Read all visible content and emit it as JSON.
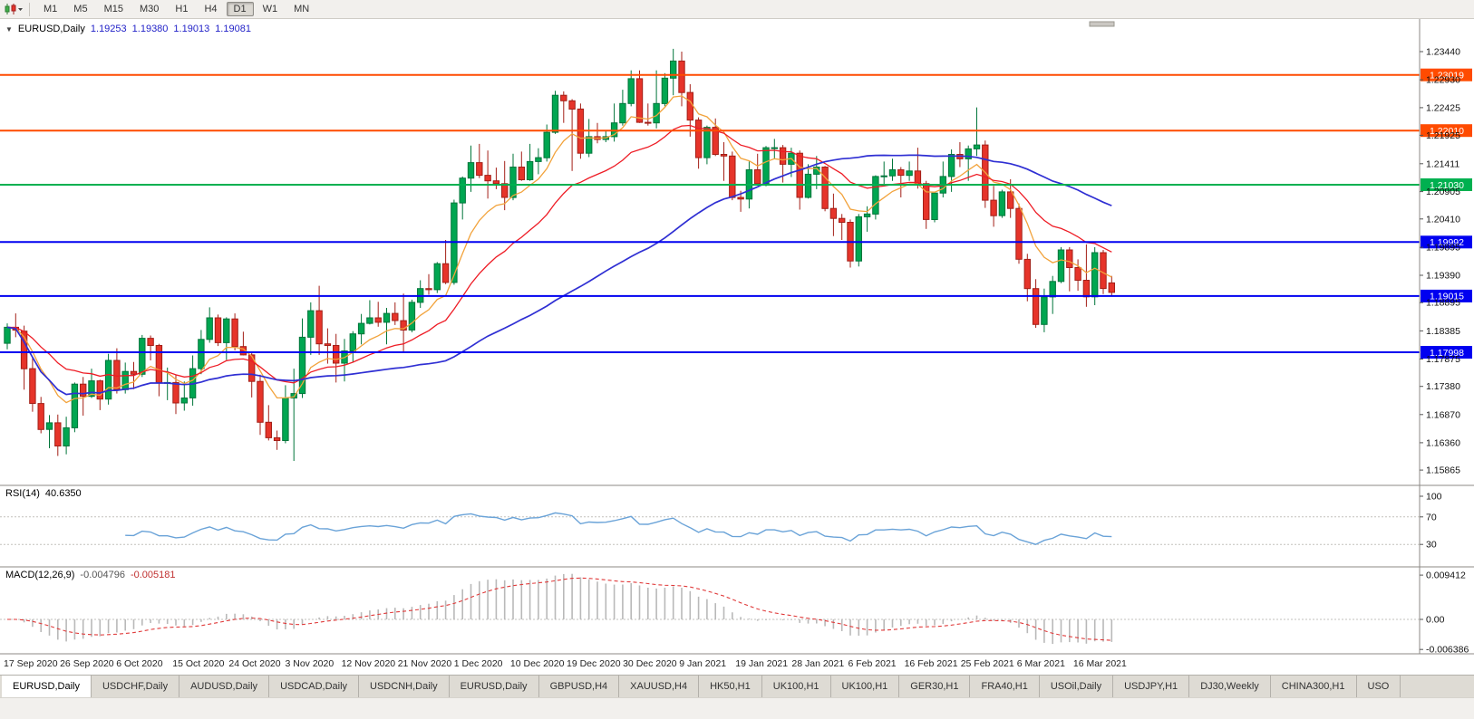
{
  "toolbar": {
    "timeframes": [
      {
        "label": "M1",
        "active": false
      },
      {
        "label": "M5",
        "active": false
      },
      {
        "label": "M15",
        "active": false
      },
      {
        "label": "M30",
        "active": false
      },
      {
        "label": "H1",
        "active": false
      },
      {
        "label": "H4",
        "active": false
      },
      {
        "label": "D1",
        "active": true
      },
      {
        "label": "W1",
        "active": false
      },
      {
        "label": "MN",
        "active": false
      }
    ]
  },
  "chart": {
    "title": {
      "symbol": "EURUSD,Daily",
      "open": "1.19253",
      "high": "1.19380",
      "low": "1.19013",
      "close": "1.19081"
    }
  },
  "rsi": {
    "name": "RSI(14)",
    "value": "40.6350",
    "axis": [
      "100",
      "70",
      "30"
    ],
    "levels": [
      70,
      30
    ]
  },
  "macd": {
    "name": "MACD(12,26,9)",
    "value_main": "-0.004796",
    "value_signal": "-0.005181",
    "axis": [
      "0.009412",
      "0.00",
      "-0.006386"
    ]
  },
  "tabs": [
    {
      "label": "EURUSD,Daily",
      "active": true
    },
    {
      "label": "USDCHF,Daily",
      "active": false
    },
    {
      "label": "AUDUSD,Daily",
      "active": false
    },
    {
      "label": "USDCAD,Daily",
      "active": false
    },
    {
      "label": "USDCNH,Daily",
      "active": false
    },
    {
      "label": "EURUSD,Daily",
      "active": false
    },
    {
      "label": "GBPUSD,H4",
      "active": false
    },
    {
      "label": "XAUUSD,H4",
      "active": false
    },
    {
      "label": "HK50,H1",
      "active": false
    },
    {
      "label": "UK100,H1",
      "active": false
    },
    {
      "label": "UK100,H1",
      "active": false
    },
    {
      "label": "GER30,H1",
      "active": false
    },
    {
      "label": "FRA40,H1",
      "active": false
    },
    {
      "label": "USOil,Daily",
      "active": false
    },
    {
      "label": "USDJPY,H1",
      "active": false
    },
    {
      "label": "DJ30,Weekly",
      "active": false
    },
    {
      "label": "CHINA300,H1",
      "active": false
    },
    {
      "label": "USO",
      "active": false
    }
  ],
  "colors": {
    "bull": "#00a651",
    "bull_border": "#00753a",
    "bear": "#e6342a",
    "bear_border": "#a31f17",
    "ma_fast": "#f2a33c",
    "ma_mid": "#ee1c25",
    "ma_slow": "#2f2fd3",
    "rsi_line": "#6aa3d8",
    "macd_hist": "#b9b9b9",
    "macd_signal": "#e03a3a",
    "resistance": "#ff4b00",
    "support_blue": "#0000f0",
    "pivot_green": "#00b050"
  },
  "chart_data": {
    "type": "candlestick",
    "symbol": "EURUSD",
    "timeframe": "Daily",
    "current_ohlc": {
      "open": 1.19253,
      "high": 1.1938,
      "low": 1.19013,
      "close": 1.19081
    },
    "ylim": [
      1.156,
      1.237
    ],
    "price_axis_ticks": [
      "1.23440",
      "1.22930",
      "1.22425",
      "1.21925",
      "1.21411",
      "1.20905",
      "1.20410",
      "1.19895",
      "1.19390",
      "1.18895",
      "1.18385",
      "1.17875",
      "1.17380",
      "1.16870",
      "1.16360",
      "1.15865"
    ],
    "date_axis_ticks": [
      "17 Sep 2020",
      "26 Sep 2020",
      "6 Oct 2020",
      "15 Oct 2020",
      "24 Oct 2020",
      "3 Nov 2020",
      "12 Nov 2020",
      "21 Nov 2020",
      "1 Dec 2020",
      "10 Dec 2020",
      "19 Dec 2020",
      "30 Dec 2020",
      "9 Jan 2021",
      "19 Jan 2021",
      "28 Jan 2021",
      "6 Feb 2021",
      "16 Feb 2021",
      "25 Feb 2021",
      "6 Mar 2021",
      "16 Mar 2021"
    ],
    "horizontal_lines": [
      {
        "label": "1.23019",
        "price": 1.23019,
        "color": "#ff4b00"
      },
      {
        "label": "1.22010",
        "price": 1.2201,
        "color": "#ff4b00"
      },
      {
        "label": "1.21030",
        "price": 1.2103,
        "color": "#00b050"
      },
      {
        "label": "1.19992",
        "price": 1.19992,
        "color": "#0000f0"
      },
      {
        "label": "1.19015",
        "price": 1.19015,
        "color": "#0000f0"
      },
      {
        "label": "1.17998",
        "price": 1.17998,
        "color": "#0000f0"
      }
    ],
    "moving_averages": [
      {
        "type": "EMA",
        "period": 8
      },
      {
        "type": "EMA",
        "period": 20
      },
      {
        "type": "SMA",
        "period": 50
      }
    ],
    "indicators": [
      {
        "name": "RSI",
        "period": 14,
        "value": 40.635
      },
      {
        "name": "MACD",
        "fast": 12,
        "slow": 26,
        "signal": 9,
        "macd": -0.004796,
        "signal_value": -0.005181
      }
    ],
    "candles": [
      [
        1.1816,
        1.1852,
        1.1805,
        1.1845
      ],
      [
        1.1845,
        1.187,
        1.1827,
        1.184
      ],
      [
        1.1838,
        1.1848,
        1.1732,
        1.177
      ],
      [
        1.177,
        1.1789,
        1.1692,
        1.1707
      ],
      [
        1.1707,
        1.1719,
        1.1653,
        1.166
      ],
      [
        1.166,
        1.1686,
        1.1626,
        1.1672
      ],
      [
        1.1672,
        1.1687,
        1.1612,
        1.163
      ],
      [
        1.163,
        1.1683,
        1.1615,
        1.1663
      ],
      [
        1.1663,
        1.1745,
        1.1655,
        1.1742
      ],
      [
        1.1742,
        1.1755,
        1.1685,
        1.172
      ],
      [
        1.172,
        1.177,
        1.1717,
        1.1748
      ],
      [
        1.1748,
        1.175,
        1.1695,
        1.1715
      ],
      [
        1.1715,
        1.1797,
        1.1705,
        1.1785
      ],
      [
        1.1785,
        1.1807,
        1.1725,
        1.1732
      ],
      [
        1.1732,
        1.1781,
        1.1725,
        1.1765
      ],
      [
        1.1765,
        1.1782,
        1.1733,
        1.176
      ],
      [
        1.176,
        1.1831,
        1.1755,
        1.1825
      ],
      [
        1.1825,
        1.183,
        1.1785,
        1.1812
      ],
      [
        1.1812,
        1.1815,
        1.172,
        1.1745
      ],
      [
        1.1745,
        1.1772,
        1.1713,
        1.1745
      ],
      [
        1.1745,
        1.1758,
        1.1688,
        1.1708
      ],
      [
        1.1708,
        1.1747,
        1.1694,
        1.1717
      ],
      [
        1.1717,
        1.1794,
        1.1703,
        1.177
      ],
      [
        1.177,
        1.184,
        1.176,
        1.1823
      ],
      [
        1.1823,
        1.1881,
        1.1817,
        1.1862
      ],
      [
        1.1862,
        1.1868,
        1.1811,
        1.1817
      ],
      [
        1.1817,
        1.1863,
        1.1786,
        1.186
      ],
      [
        1.186,
        1.187,
        1.1803,
        1.181
      ],
      [
        1.181,
        1.1837,
        1.1794,
        1.1795
      ],
      [
        1.1795,
        1.18,
        1.1718,
        1.1747
      ],
      [
        1.1747,
        1.1759,
        1.165,
        1.1673
      ],
      [
        1.1673,
        1.1704,
        1.164,
        1.1645
      ],
      [
        1.1645,
        1.1658,
        1.1623,
        1.164
      ],
      [
        1.164,
        1.174,
        1.1635,
        1.1717
      ],
      [
        1.1717,
        1.177,
        1.1603,
        1.1725
      ],
      [
        1.1725,
        1.1861,
        1.1717,
        1.1827
      ],
      [
        1.1827,
        1.189,
        1.1795,
        1.1875
      ],
      [
        1.1875,
        1.192,
        1.1795,
        1.1815
      ],
      [
        1.1815,
        1.1843,
        1.1779,
        1.1812
      ],
      [
        1.1812,
        1.1833,
        1.1745,
        1.178
      ],
      [
        1.178,
        1.1824,
        1.1747,
        1.1802
      ],
      [
        1.1802,
        1.1838,
        1.1782,
        1.1833
      ],
      [
        1.1833,
        1.1869,
        1.1814,
        1.1852
      ],
      [
        1.1852,
        1.1894,
        1.185,
        1.1862
      ],
      [
        1.1862,
        1.1891,
        1.1846,
        1.1854
      ],
      [
        1.1854,
        1.188,
        1.1814,
        1.187
      ],
      [
        1.187,
        1.189,
        1.1849,
        1.1857
      ],
      [
        1.1857,
        1.1906,
        1.18,
        1.184
      ],
      [
        1.184,
        1.1895,
        1.1836,
        1.189
      ],
      [
        1.189,
        1.193,
        1.188,
        1.1915
      ],
      [
        1.1915,
        1.1941,
        1.1904,
        1.1913
      ],
      [
        1.1913,
        1.1963,
        1.1907,
        1.196
      ],
      [
        1.196,
        1.2003,
        1.1923,
        1.1926
      ],
      [
        1.1926,
        1.2076,
        1.1922,
        1.207
      ],
      [
        1.207,
        1.2118,
        1.204,
        1.2115
      ],
      [
        1.2115,
        1.2174,
        1.209,
        1.2143
      ],
      [
        1.2143,
        1.2177,
        1.2115,
        1.212
      ],
      [
        1.212,
        1.2165,
        1.2078,
        1.211
      ],
      [
        1.211,
        1.2134,
        1.2095,
        1.2105
      ],
      [
        1.2105,
        1.2146,
        1.2057,
        1.208
      ],
      [
        1.208,
        1.2159,
        1.2075,
        1.2135
      ],
      [
        1.2135,
        1.2163,
        1.211,
        1.2112
      ],
      [
        1.2112,
        1.2177,
        1.211,
        1.2145
      ],
      [
        1.2145,
        1.2169,
        1.2122,
        1.2152
      ],
      [
        1.2152,
        1.2212,
        1.2145,
        1.2198
      ],
      [
        1.2198,
        1.2273,
        1.2195,
        1.2265
      ],
      [
        1.2265,
        1.2272,
        1.2215,
        1.2255
      ],
      [
        1.2255,
        1.2258,
        1.2128,
        1.224
      ],
      [
        1.224,
        1.225,
        1.215,
        1.216
      ],
      [
        1.216,
        1.2222,
        1.2153,
        1.219
      ],
      [
        1.219,
        1.2215,
        1.2178,
        1.2185
      ],
      [
        1.2185,
        1.22,
        1.218,
        1.219
      ],
      [
        1.219,
        1.225,
        1.2181,
        1.2215
      ],
      [
        1.2215,
        1.2275,
        1.221,
        1.225
      ],
      [
        1.225,
        1.231,
        1.2245,
        1.2295
      ],
      [
        1.2295,
        1.231,
        1.2215,
        1.2216
      ],
      [
        1.2216,
        1.225,
        1.221,
        1.2215
      ],
      [
        1.2215,
        1.231,
        1.2205,
        1.225
      ],
      [
        1.225,
        1.2305,
        1.2245,
        1.2296
      ],
      [
        1.2296,
        1.2349,
        1.2265,
        1.2327
      ],
      [
        1.2327,
        1.2344,
        1.2245,
        1.227
      ],
      [
        1.227,
        1.2285,
        1.219,
        1.222
      ],
      [
        1.222,
        1.2225,
        1.2132,
        1.2152
      ],
      [
        1.2152,
        1.221,
        1.214,
        1.2207
      ],
      [
        1.2207,
        1.2223,
        1.2155,
        1.2158
      ],
      [
        1.2158,
        1.218,
        1.211,
        1.2155
      ],
      [
        1.2155,
        1.2163,
        1.2075,
        1.208
      ],
      [
        1.208,
        1.2092,
        1.2054,
        1.2077
      ],
      [
        1.2077,
        1.2145,
        1.206,
        1.213
      ],
      [
        1.213,
        1.2159,
        1.2102,
        1.2105
      ],
      [
        1.2105,
        1.2173,
        1.21,
        1.217
      ],
      [
        1.217,
        1.2186,
        1.215,
        1.217
      ],
      [
        1.217,
        1.2175,
        1.2107,
        1.214
      ],
      [
        1.214,
        1.217,
        1.2117,
        1.216
      ],
      [
        1.216,
        1.2165,
        1.2058,
        1.208
      ],
      [
        1.208,
        1.214,
        1.2078,
        1.2122
      ],
      [
        1.2122,
        1.2155,
        1.2095,
        1.2135
      ],
      [
        1.2135,
        1.2137,
        1.2055,
        1.206
      ],
      [
        1.206,
        1.2087,
        1.201,
        1.2042
      ],
      [
        1.2042,
        1.205,
        1.2003,
        1.2035
      ],
      [
        1.2035,
        1.204,
        1.1953,
        1.1965
      ],
      [
        1.1965,
        1.205,
        1.1955,
        1.2045
      ],
      [
        1.2045,
        1.2064,
        1.2018,
        1.205
      ],
      [
        1.205,
        1.212,
        1.204,
        1.2118
      ],
      [
        1.2118,
        1.2145,
        1.21,
        1.2119
      ],
      [
        1.2119,
        1.215,
        1.211,
        1.213
      ],
      [
        1.213,
        1.2135,
        1.208,
        1.212
      ],
      [
        1.212,
        1.2145,
        1.211,
        1.2128
      ],
      [
        1.2128,
        1.217,
        1.2096,
        1.2105
      ],
      [
        1.2105,
        1.211,
        1.2023,
        1.204
      ],
      [
        1.204,
        1.209,
        1.2035,
        1.2088
      ],
      [
        1.2088,
        1.2145,
        1.208,
        1.2118
      ],
      [
        1.2118,
        1.2167,
        1.209,
        1.2158
      ],
      [
        1.2158,
        1.218,
        1.2135,
        1.215
      ],
      [
        1.215,
        1.2174,
        1.211,
        1.2168
      ],
      [
        1.2168,
        1.2243,
        1.2155,
        1.2175
      ],
      [
        1.2175,
        1.2183,
        1.2061,
        1.2075
      ],
      [
        1.2075,
        1.2101,
        1.2027,
        1.2047
      ],
      [
        1.2047,
        1.2094,
        1.2043,
        1.209
      ],
      [
        1.209,
        1.2113,
        1.2043,
        1.206
      ],
      [
        1.206,
        1.2069,
        1.196,
        1.1968
      ],
      [
        1.1968,
        1.1978,
        1.1892,
        1.1915
      ],
      [
        1.1915,
        1.1932,
        1.1844,
        1.185
      ],
      [
        1.185,
        1.1915,
        1.1836,
        1.19
      ],
      [
        1.19,
        1.1938,
        1.1869,
        1.1928
      ],
      [
        1.1928,
        1.199,
        1.1925,
        1.1985
      ],
      [
        1.1985,
        1.199,
        1.191,
        1.1953
      ],
      [
        1.1953,
        1.1968,
        1.1911,
        1.193
      ],
      [
        1.193,
        1.1995,
        1.1882,
        1.19
      ],
      [
        1.19,
        1.199,
        1.1885,
        1.198
      ],
      [
        1.198,
        1.1985,
        1.1905,
        1.1915
      ],
      [
        1.19253,
        1.1938,
        1.19013,
        1.19081
      ]
    ]
  }
}
